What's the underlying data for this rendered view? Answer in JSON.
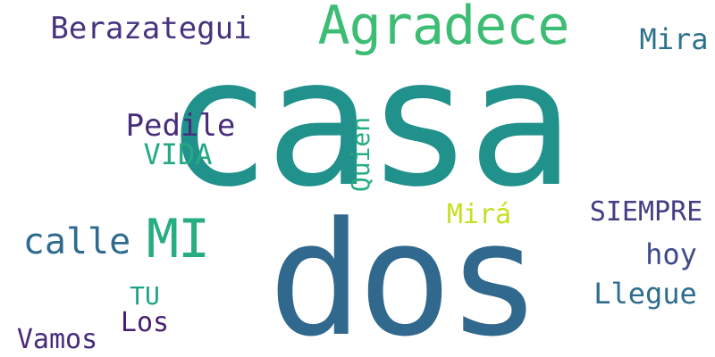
{
  "words": [
    {
      "id": "casa",
      "text": "casa",
      "color": "#21918c"
    },
    {
      "id": "dos",
      "text": "dos",
      "color": "#31688e"
    },
    {
      "id": "agradece",
      "text": "Agradece",
      "color": "#3dbc74"
    },
    {
      "id": "mi",
      "text": "MI",
      "color": "#27ad81"
    },
    {
      "id": "berazategui",
      "text": "Berazategui",
      "color": "#46337e"
    },
    {
      "id": "mira-upper",
      "text": "Mira",
      "color": "#2c728e"
    },
    {
      "id": "calle",
      "text": "calle",
      "color": "#2f6b8e"
    },
    {
      "id": "pedile",
      "text": "Pedile",
      "color": "#472d7b"
    },
    {
      "id": "vida",
      "text": "VIDA",
      "color": "#24aa83"
    },
    {
      "id": "quien",
      "text": "Quien",
      "color": "#26ad81"
    },
    {
      "id": "mira-accent",
      "text": "Mirá",
      "color": "#c5e021"
    },
    {
      "id": "siempre",
      "text": "SIEMPRE",
      "color": "#433e85"
    },
    {
      "id": "hoy",
      "text": "hoy",
      "color": "#3e4a89"
    },
    {
      "id": "llegue",
      "text": "Llegue",
      "color": "#2f6c8e"
    },
    {
      "id": "tu",
      "text": "TU",
      "color": "#20a486"
    },
    {
      "id": "los",
      "text": "Los",
      "color": "#481f70"
    },
    {
      "id": "vamos",
      "text": "Vamos",
      "color": "#472a7a"
    }
  ]
}
